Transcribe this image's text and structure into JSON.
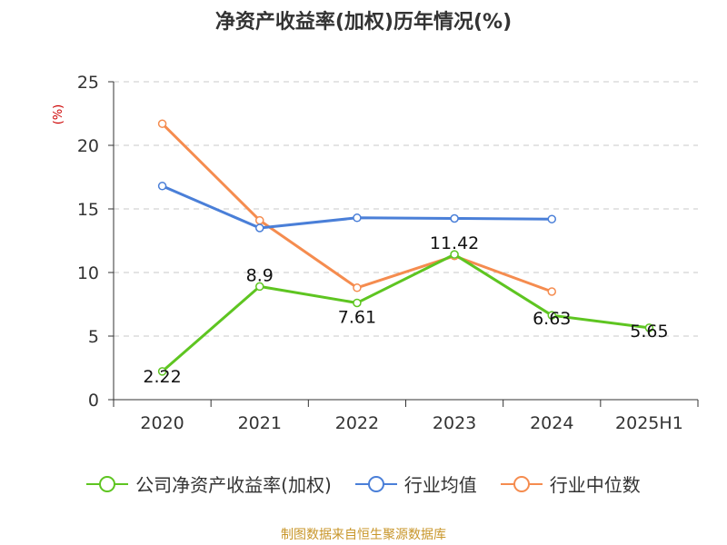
{
  "chart_data": {
    "type": "line",
    "title": "净资产收益率(加权)历年情况(%)",
    "categories": [
      "2020",
      "2021",
      "2022",
      "2023",
      "2024",
      "2025H1"
    ],
    "ylabel": "(%)",
    "ylim": [
      0,
      25
    ],
    "yticks": [
      0,
      5,
      10,
      15,
      20,
      25
    ],
    "grid": true,
    "legend_position": "bottom",
    "series": [
      {
        "name": "公司净资产收益率(加权)",
        "color": "#5ec521",
        "values": [
          2.22,
          8.9,
          7.61,
          11.42,
          6.63,
          5.65
        ],
        "labels": [
          "2.22",
          "8.9",
          "7.61",
          "11.42",
          "6.63",
          "5.65"
        ]
      },
      {
        "name": "行业均值",
        "color": "#4a7fd8",
        "values": [
          16.8,
          13.5,
          14.3,
          14.25,
          14.2,
          null
        ]
      },
      {
        "name": "行业中位数",
        "color": "#f58c4f",
        "values": [
          21.7,
          14.1,
          8.8,
          11.3,
          8.5,
          null
        ]
      }
    ]
  },
  "footer": {
    "source": "制图数据来自恒生聚源数据库"
  }
}
